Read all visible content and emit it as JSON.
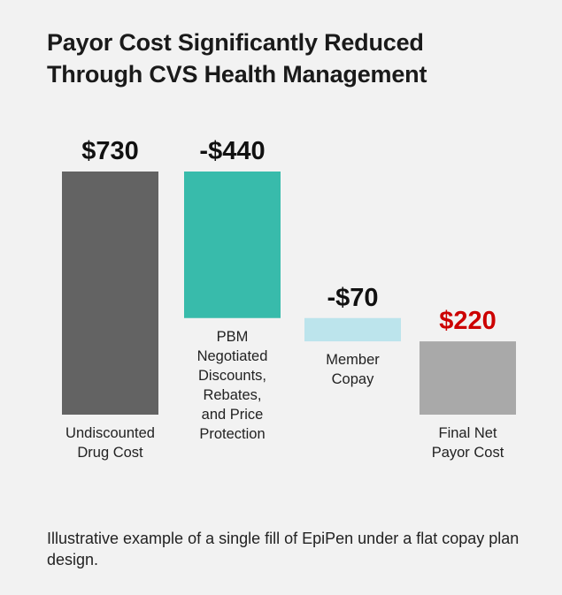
{
  "title_lines": [
    "Payor Cost Significantly Reduced",
    "Through CVS Health Management"
  ],
  "footnote": "Illustrative example of a single fill of EpiPen under a flat copay plan design.",
  "chart_data": {
    "type": "bar",
    "subtype": "waterfall",
    "title": "Payor Cost Significantly Reduced Through CVS Health Management",
    "currency": "$",
    "categories": [
      [
        "Undiscounted",
        "Drug Cost"
      ],
      [
        "PBM",
        "Negotiated",
        "Discounts,",
        "Rebates,",
        "and Price",
        "Protection"
      ],
      [
        "Member",
        "Copay"
      ],
      [
        "Final Net",
        "Payor Cost"
      ]
    ],
    "values": [
      730,
      -440,
      -70,
      220
    ],
    "value_labels": [
      "$730",
      "-$440",
      "-$70",
      "$220"
    ],
    "bar_kinds": [
      "total",
      "delta",
      "delta",
      "total"
    ],
    "colors": [
      "#636363",
      "#38bbab",
      "#bce4ec",
      "#a9a9a9"
    ],
    "label_colors": [
      "#111111",
      "#111111",
      "#111111",
      "#cc0000"
    ],
    "ylim": [
      0,
      730
    ],
    "grid": false,
    "legend": "none"
  }
}
